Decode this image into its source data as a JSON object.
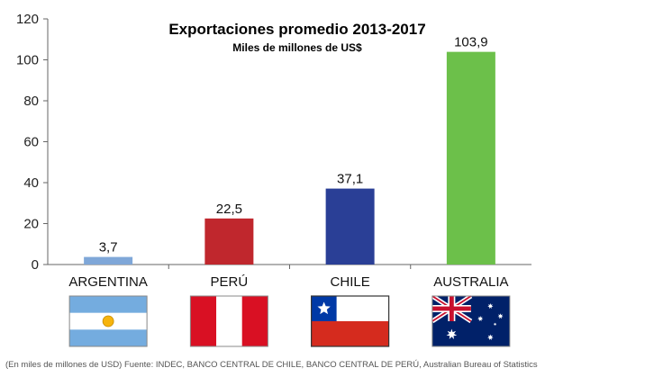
{
  "chart_data": {
    "type": "bar",
    "title": "Exportaciones promedio 2013-2017",
    "subtitle": "Miles de millones de US$",
    "categories": [
      "ARGENTINA",
      "PERÚ",
      "CHILE",
      "AUSTRALIA"
    ],
    "values": [
      3.7,
      22.5,
      37.1,
      103.9
    ],
    "value_labels": [
      "3,7",
      "22,5",
      "37,1",
      "103,9"
    ],
    "colors": [
      "#7fa7d8",
      "#c0272d",
      "#2a3f96",
      "#6cc04a"
    ],
    "flags": [
      "argentina-flag",
      "peru-flag",
      "chile-flag",
      "australia-flag"
    ],
    "ylim": [
      0,
      120
    ],
    "yticks": [
      0,
      20,
      40,
      60,
      80,
      100,
      120
    ],
    "grid": false,
    "xlabel": "",
    "ylabel": ""
  },
  "source": "(En miles de millones de USD) Fuente: INDEC, BANCO CENTRAL DE CHILE, BANCO CENTRAL DE PERÚ, Australian Bureau of Statistics"
}
